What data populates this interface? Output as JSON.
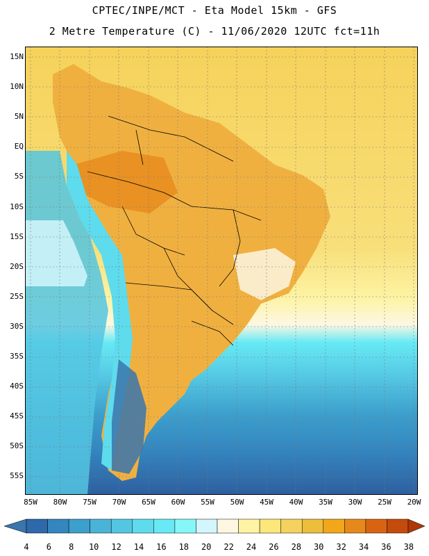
{
  "header": {
    "line1": "CPTEC/INPE/MCT -  Eta Model 15km - GFS",
    "line2": "2 Metre Temperature (C) - 11/06/2020 12UTC fct=11h"
  },
  "axes": {
    "lat_labels": [
      "15N",
      "10N",
      "5N",
      "EQ",
      "5S",
      "10S",
      "15S",
      "20S",
      "25S",
      "30S",
      "35S",
      "40S",
      "45S",
      "50S",
      "55S"
    ],
    "lon_labels": [
      "85W",
      "80W",
      "75W",
      "70W",
      "65W",
      "60W",
      "55W",
      "50W",
      "45W",
      "40W",
      "35W",
      "30W",
      "25W",
      "20W"
    ]
  },
  "colorbar": {
    "ticks": [
      "4",
      "6",
      "8",
      "10",
      "12",
      "14",
      "16",
      "18",
      "20",
      "22",
      "24",
      "26",
      "28",
      "30",
      "32",
      "34",
      "36",
      "38"
    ],
    "colors": [
      "#3a76ad",
      "#2e69ab",
      "#3486bf",
      "#3d9fcc",
      "#4ab3d8",
      "#54c6e2",
      "#5edbec",
      "#67eaf5",
      "#86f7f8",
      "#d2f6fb",
      "#fdf7e2",
      "#fdf3a3",
      "#fbe77a",
      "#f5d25e",
      "#edbd3c",
      "#f1a719",
      "#e7891a",
      "#d86411",
      "#c54b0d",
      "#ad3809"
    ],
    "low_color": "#3a76ad",
    "high_color": "#ad3809"
  },
  "colors": {
    "land_warm": "#f0b040",
    "ocean_warm": "#f6d25a",
    "ocean_mid": "#fdf3a3",
    "ocean_cool": "#54c6e2",
    "ocean_cold": "#3486bf",
    "ocean_coldest": "#2e5fa0",
    "andes": "#5edbec",
    "andes_south": "#3a76ad",
    "border": "#000000"
  }
}
